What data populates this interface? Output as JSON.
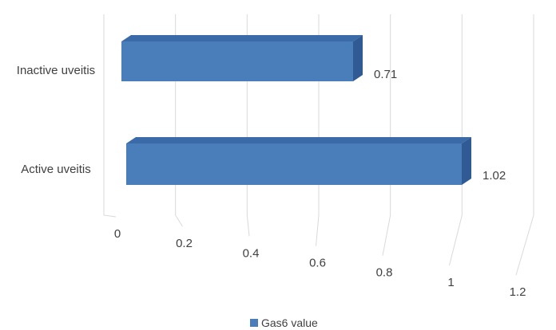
{
  "chart_data": {
    "type": "bar",
    "orientation": "horizontal",
    "style": "3d",
    "categories": [
      "Inactive uveitis",
      "Active uveitis"
    ],
    "series": [
      {
        "name": "Gas6 value",
        "values": [
          0.71,
          1.02
        ],
        "color": "#4a7ebb"
      }
    ],
    "data_labels": [
      "0.71",
      "1.02"
    ],
    "x_ticks": [
      "0",
      "0.2",
      "0.4",
      "0.6",
      "0.8",
      "1",
      "1.2"
    ],
    "xlim": [
      0,
      1.2
    ],
    "grid": true,
    "legend_position": "bottom"
  }
}
